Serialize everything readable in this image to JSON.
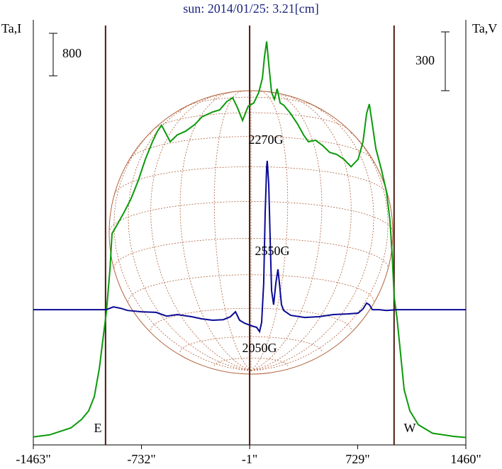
{
  "chart_data": {
    "type": "line",
    "title": "sun: 2014/01/25: 3.21[cm]",
    "y_label": "Ta,I",
    "y2_label": "Ta,V",
    "scale_bar": 800,
    "scale_bar2": 300,
    "xlim": [
      -1463,
      1460
    ],
    "ylim": [
      -150,
      7830
    ],
    "y2lim": [
      -690,
      1471
    ],
    "xticks": [
      {
        "value": -1463,
        "label": "-1463\""
      },
      {
        "value": -732,
        "label": "-732\""
      },
      {
        "value": -1,
        "label": "-1\""
      },
      {
        "value": 729,
        "label": "729\""
      },
      {
        "value": 1460,
        "label": "1460\""
      }
    ],
    "vlines": [
      -975,
      -1,
      975
    ],
    "limb_labels": [
      "E",
      "W"
    ],
    "annotations": [
      "2270G",
      "2550G",
      "2050G"
    ],
    "series": [
      {
        "name": "Ta,I",
        "color": "#0a9a0a",
        "x": [
          -1463,
          -1353,
          -1209,
          -1137,
          -1089,
          -1051,
          -1017,
          -993,
          -969,
          -945,
          -931,
          -898,
          -850,
          -802,
          -754,
          -706,
          -658,
          -624,
          -596,
          -562,
          -538,
          -490,
          -433,
          -370,
          -323,
          -251,
          -203,
          -155,
          -116,
          -83,
          -49,
          -11,
          27,
          61,
          85,
          99,
          114,
          128,
          147,
          166,
          185,
          205,
          229,
          276,
          324,
          363,
          396,
          444,
          492,
          540,
          588,
          636,
          684,
          732,
          765,
          789,
          808,
          828,
          852,
          890,
          923,
          947,
          962,
          976,
          995,
          1019,
          1043,
          1082,
          1139,
          1235,
          1379,
          1460
        ],
        "values": [
          0,
          40,
          170,
          330,
          490,
          760,
          1290,
          1830,
          2360,
          3160,
          3830,
          3990,
          4230,
          4490,
          4830,
          5230,
          5560,
          5760,
          5870,
          5690,
          5560,
          5690,
          5760,
          5890,
          6030,
          6120,
          6160,
          6320,
          6390,
          6200,
          5960,
          6230,
          6290,
          6490,
          6760,
          7160,
          7450,
          7030,
          6490,
          6360,
          6560,
          6290,
          6250,
          6090,
          5890,
          5690,
          5560,
          5590,
          5490,
          5360,
          5320,
          5230,
          5090,
          5230,
          5560,
          6090,
          6270,
          5890,
          5430,
          5030,
          4630,
          4090,
          3430,
          2630,
          2230,
          1560,
          890,
          490,
          230,
          70,
          10,
          -10
        ]
      },
      {
        "name": "Ta,V",
        "color": "#0a0a96",
        "axis": "y2",
        "x": [
          -1463,
          -1209,
          -1017,
          -969,
          -922,
          -874,
          -826,
          -730,
          -634,
          -562,
          -490,
          -394,
          -323,
          -251,
          -179,
          -131,
          -97,
          -69,
          -35,
          13,
          46,
          66,
          80,
          94,
          104,
          114,
          118,
          128,
          138,
          147,
          161,
          176,
          190,
          200,
          214,
          229,
          276,
          372,
          468,
          564,
          660,
          732,
          765,
          789,
          808,
          828,
          875,
          923,
          995,
          1187,
          1460
        ],
        "values": [
          0,
          0,
          0,
          0,
          14,
          7,
          -4,
          -11,
          -14,
          -33,
          -25,
          -36,
          -47,
          -54,
          -51,
          -36,
          -11,
          -54,
          -69,
          -83,
          -90,
          -112,
          -65,
          134,
          495,
          730,
          759,
          640,
          351,
          98,
          25,
          134,
          206,
          134,
          25,
          -4,
          -29,
          -40,
          -36,
          -25,
          -22,
          -18,
          4,
          33,
          25,
          0,
          0,
          -4,
          0,
          0,
          0
        ]
      }
    ]
  }
}
